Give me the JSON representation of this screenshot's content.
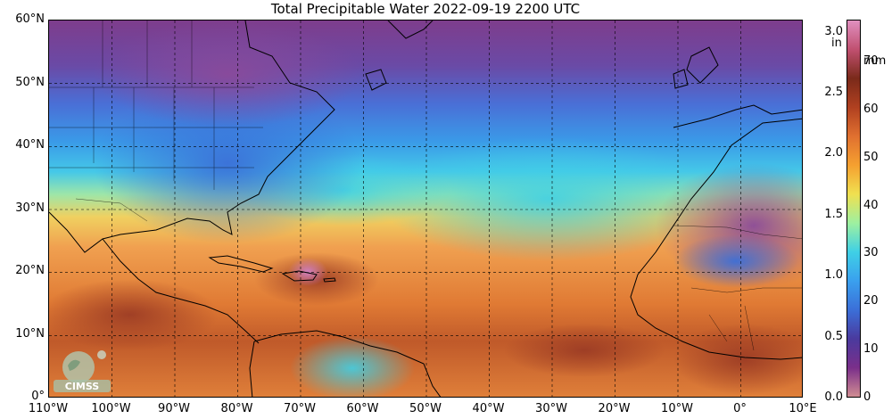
{
  "title": "Total Precipitable Water  2022-09-19 2200 UTC",
  "lat_labels": [
    "60°N",
    "50°N",
    "40°N",
    "30°N",
    "20°N",
    "10°N",
    "0°"
  ],
  "lon_labels": [
    "110°W",
    "100°W",
    "90°W",
    "80°W",
    "70°W",
    "60°W",
    "50°W",
    "40°W",
    "30°W",
    "20°W",
    "10°W",
    "0°",
    "10°E"
  ],
  "colorbar": {
    "left_unit": "in",
    "right_unit": "mm",
    "in_ticks": [
      "3.0",
      "2.5",
      "2.0",
      "1.5",
      "1.0",
      "0.5",
      "0.0"
    ],
    "in_values": [
      3.0,
      2.5,
      2.0,
      1.5,
      1.0,
      0.5,
      0.0
    ],
    "mm_ticks": [
      "70",
      "60",
      "50",
      "40",
      "30",
      "20",
      "10",
      "0"
    ],
    "mm_values": [
      70,
      60,
      50,
      40,
      30,
      20,
      10,
      0
    ],
    "range_in": [
      0.0,
      3.1
    ],
    "colors": [
      "#d08c92",
      "#7a2f8a",
      "#4a3a9e",
      "#3b6fd8",
      "#3aa0ee",
      "#3fd0e6",
      "#9ef0a0",
      "#f0e050",
      "#f5a030",
      "#e07030",
      "#b04020",
      "#7a2a1a",
      "#c05070",
      "#e090c0"
    ]
  },
  "logo": {
    "text": "CIMSS"
  },
  "map": {
    "lat_range": [
      0,
      60
    ],
    "lon_range": [
      -110,
      10
    ],
    "ocean_color": "#f0a050",
    "regions": [
      {
        "name": "north-purple",
        "color": "#7e3d8c"
      },
      {
        "name": "mid-blue",
        "color": "#3d8fe0"
      },
      {
        "name": "subtropical-cyan",
        "color": "#45c8e8"
      },
      {
        "name": "tropical-orange",
        "color": "#e8883a"
      },
      {
        "name": "equatorial-brown",
        "color": "#b8502a"
      },
      {
        "name": "sahara-purple",
        "color": "#8a4a9a"
      }
    ]
  }
}
